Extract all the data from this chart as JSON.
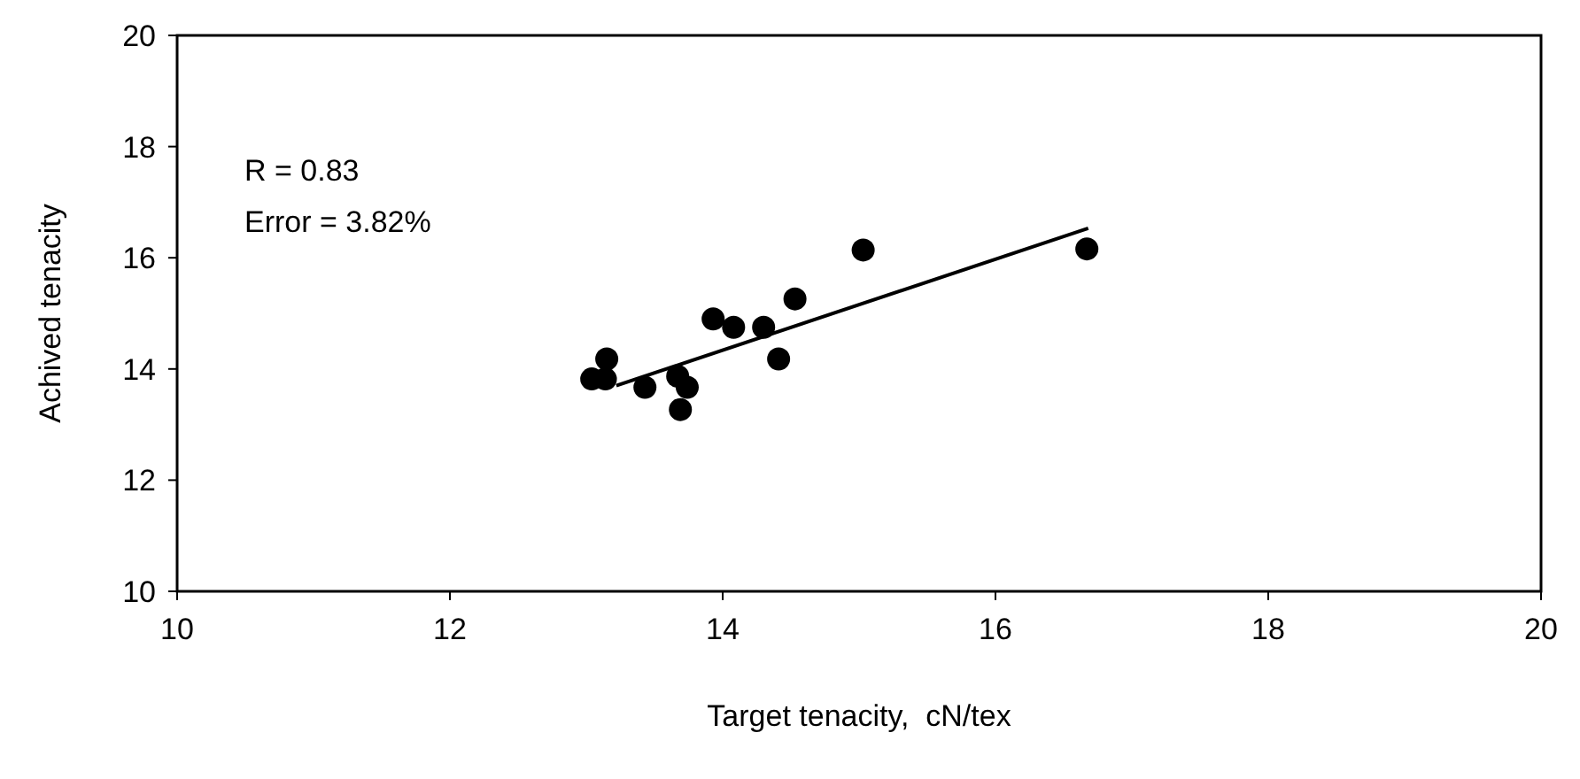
{
  "chart_data": {
    "type": "scatter",
    "xlabel": "Target tenacity,  cN/tex",
    "ylabel": "Achived tenacity",
    "xlim": [
      10,
      20
    ],
    "ylim": [
      10,
      20
    ],
    "xticks": [
      10,
      12,
      14,
      16,
      18,
      20
    ],
    "yticks": [
      10,
      12,
      14,
      16,
      18,
      20
    ],
    "grid": false,
    "marker": "circle",
    "annotations": [
      "R = 0.83",
      "Error = 3.82%"
    ],
    "series": [
      {
        "color": "#000000",
        "x": [
          13.04,
          13.14,
          13.15,
          13.43,
          13.67,
          13.74,
          13.69,
          13.93,
          14.08,
          14.3,
          14.41,
          14.53,
          15.03,
          16.67
        ],
        "values": [
          13.82,
          13.82,
          14.18,
          13.67,
          13.87,
          13.67,
          13.27,
          14.9,
          14.75,
          14.75,
          14.18,
          15.26,
          16.14,
          16.16
        ]
      },
      {
        "type": "line",
        "color": "#000000",
        "line_style": "solid",
        "marker": "none",
        "x": [
          13.22,
          16.68
        ],
        "values": [
          13.7,
          16.53
        ]
      }
    ]
  }
}
